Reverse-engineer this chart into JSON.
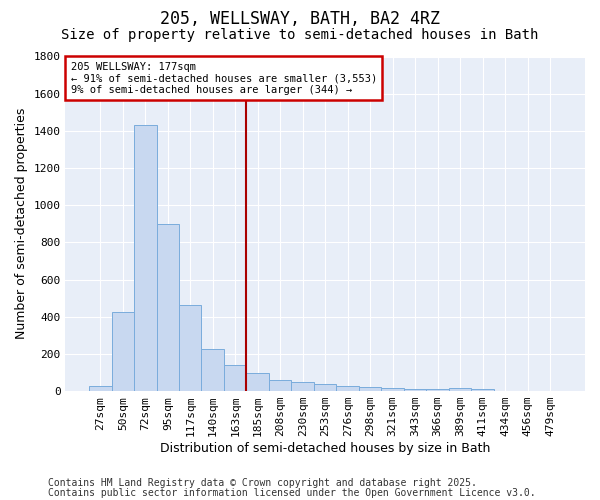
{
  "title": "205, WELLSWAY, BATH, BA2 4RZ",
  "subtitle": "Size of property relative to semi-detached houses in Bath",
  "xlabel": "Distribution of semi-detached houses by size in Bath",
  "ylabel": "Number of semi-detached properties",
  "categories": [
    "27sqm",
    "50sqm",
    "72sqm",
    "95sqm",
    "117sqm",
    "140sqm",
    "163sqm",
    "185sqm",
    "208sqm",
    "230sqm",
    "253sqm",
    "276sqm",
    "298sqm",
    "321sqm",
    "343sqm",
    "366sqm",
    "389sqm",
    "411sqm",
    "434sqm",
    "456sqm",
    "479sqm"
  ],
  "values": [
    30,
    425,
    1430,
    900,
    465,
    225,
    140,
    95,
    60,
    50,
    38,
    30,
    22,
    17,
    10,
    10,
    18,
    10,
    0,
    0,
    0
  ],
  "bar_color": "#c8d8f0",
  "bar_edge_color": "#7aacdc",
  "vline_index": 7,
  "vline_color": "#aa0000",
  "annotation_text": "205 WELLSWAY: 177sqm\n← 91% of semi-detached houses are smaller (3,553)\n9% of semi-detached houses are larger (344) →",
  "annotation_box_color": "#ffffff",
  "annotation_box_edge": "#cc0000",
  "ylim": [
    0,
    1800
  ],
  "yticks": [
    0,
    200,
    400,
    600,
    800,
    1000,
    1200,
    1400,
    1600,
    1800
  ],
  "footer1": "Contains HM Land Registry data © Crown copyright and database right 2025.",
  "footer2": "Contains public sector information licensed under the Open Government Licence v3.0.",
  "bg_color": "#ffffff",
  "plot_bg_color": "#e8eef8",
  "grid_color": "#ffffff",
  "title_fontsize": 12,
  "subtitle_fontsize": 10,
  "axis_label_fontsize": 9,
  "tick_fontsize": 8,
  "footer_fontsize": 7
}
